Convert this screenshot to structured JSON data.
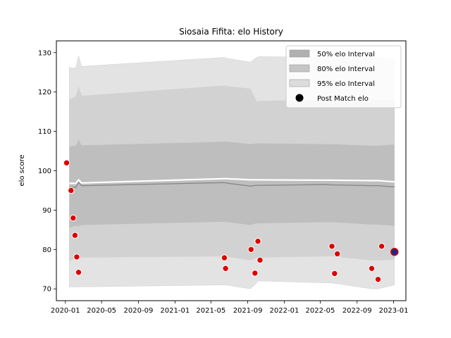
{
  "chart_data": {
    "type": "area",
    "title": "Siosaia Fifita: elo History",
    "xlabel": "",
    "ylabel": "elo score",
    "x_axis_type": "date",
    "xlim": [
      "2019-12-02",
      "2023-02-11"
    ],
    "ylim": [
      67,
      133
    ],
    "x_ticks": [
      "2020-01",
      "2020-05",
      "2020-09",
      "2021-01",
      "2021-05",
      "2021-09",
      "2022-01",
      "2022-05",
      "2022-09",
      "2023-01"
    ],
    "y_ticks": [
      70,
      80,
      90,
      100,
      110,
      120,
      130
    ],
    "grid": false,
    "legend_position": "top-right",
    "x": [
      "2020-01-14",
      "2020-01-27",
      "2020-02-05",
      "2020-02-14",
      "2020-02-24",
      "2021-06-15",
      "2021-06-19",
      "2021-09-10",
      "2021-10-01",
      "2021-10-05",
      "2021-10-12",
      "2022-05-25",
      "2022-06-01",
      "2022-06-09",
      "2022-10-20",
      "2022-11-01",
      "2022-11-10",
      "2023-01-04"
    ],
    "bands": [
      {
        "name": "95% elo Interval",
        "color": "#e3e3e3",
        "upper": [
          126.3,
          126.0,
          126.2,
          129.2,
          126.5,
          128.8,
          128.6,
          127.6,
          128.8,
          128.9,
          129.0,
          128.8,
          128.7,
          128.7,
          128.6,
          128.6,
          128.7,
          128.2
        ],
        "lower": [
          70.5,
          70.5,
          70.5,
          70.5,
          70.5,
          71.0,
          71.0,
          70.0,
          71.5,
          72.0,
          72.0,
          71.5,
          71.5,
          71.5,
          70.0,
          70.0,
          70.0,
          71.0
        ]
      },
      {
        "name": "80% elo Interval",
        "color": "#d2d2d2",
        "upper": [
          118.0,
          118.5,
          118.8,
          121.3,
          119.0,
          121.6,
          121.5,
          120.8,
          117.5,
          117.6,
          117.7,
          118.0,
          118.1,
          118.1,
          118.0,
          118.0,
          118.0,
          118.0
        ],
        "lower": [
          77.0,
          77.5,
          78.0,
          77.5,
          78.0,
          78.3,
          78.3,
          77.3,
          78.0,
          78.0,
          78.0,
          78.3,
          78.3,
          78.3,
          77.3,
          77.3,
          77.3,
          77.5
        ]
      },
      {
        "name": "50% elo Interval",
        "color": "#bebebe",
        "upper": [
          106.2,
          106.3,
          106.4,
          108.0,
          106.5,
          107.4,
          107.5,
          106.8,
          107.0,
          107.0,
          107.0,
          106.8,
          106.8,
          106.8,
          106.4,
          106.4,
          106.4,
          106.7
        ],
        "lower": [
          85.5,
          85.8,
          86.0,
          85.8,
          86.2,
          87.0,
          87.0,
          86.2,
          86.6,
          86.6,
          86.6,
          86.9,
          86.9,
          86.9,
          86.3,
          86.3,
          86.3,
          86.0
        ]
      }
    ],
    "series": [
      {
        "name": "",
        "color": "#ffffff",
        "values": [
          96.8,
          96.8,
          96.8,
          97.7,
          96.9,
          98.0,
          98.0,
          97.7,
          97.7,
          97.7,
          97.7,
          97.6,
          97.6,
          97.6,
          97.5,
          97.5,
          97.5,
          97.2
        ]
      },
      {
        "name": "",
        "color": "#888888",
        "values": [
          95.8,
          95.8,
          95.8,
          97.0,
          96.2,
          97.0,
          96.9,
          96.1,
          96.3,
          96.3,
          96.3,
          96.5,
          96.4,
          96.4,
          96.2,
          96.2,
          96.2,
          95.9
        ]
      }
    ],
    "points": {
      "name": "Post Match elo",
      "color": "#dd0000",
      "x": [
        "2020-01-05",
        "2020-01-20",
        "2020-01-27",
        "2020-02-02",
        "2020-02-08",
        "2020-02-14",
        "2021-06-15",
        "2021-06-19",
        "2021-09-12",
        "2021-09-25",
        "2021-10-05",
        "2021-10-12",
        "2022-06-09",
        "2022-06-18",
        "2022-06-27",
        "2022-10-20",
        "2022-11-10",
        "2022-11-22",
        "2023-01-04"
      ],
      "y": [
        102.0,
        95.0,
        88.0,
        83.6,
        78.1,
        74.2,
        77.9,
        75.2,
        80.0,
        74.0,
        82.1,
        77.3,
        80.8,
        73.9,
        78.9,
        75.2,
        72.4,
        80.8,
        79.4
      ]
    },
    "highlight_point": {
      "x": "2023-01-04",
      "y": 79.4,
      "color": "#1a2a8a"
    }
  },
  "legend": {
    "entries": [
      {
        "label": "50% elo Interval",
        "swatch": "#b0b0b0",
        "kind": "patch"
      },
      {
        "label": "80% elo Interval",
        "swatch": "#c6c6c6",
        "kind": "patch"
      },
      {
        "label": "95% elo Interval",
        "swatch": "#dcdcdc",
        "kind": "patch"
      },
      {
        "label": "Post Match elo",
        "swatch": "#000000",
        "kind": "marker"
      }
    ]
  }
}
